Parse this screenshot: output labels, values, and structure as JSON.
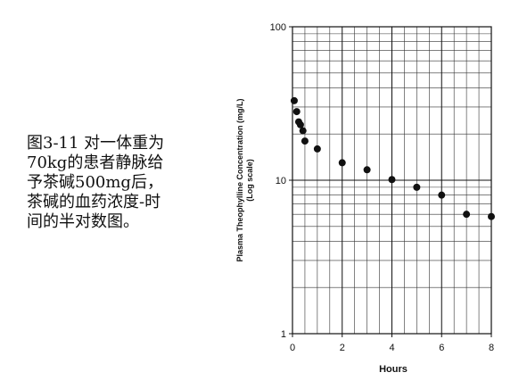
{
  "chart_data": {
    "type": "scatter",
    "caption": [
      "图3-11  对一体重为",
      "70kg的患者静脉给",
      "予茶碱500mg后，",
      "茶碱的血药浓度-时",
      "间的半对数图。"
    ],
    "xlabel": "Hours",
    "ylabel": [
      "Plasma Theophylline Concentration (mg/L)",
      "(Log scale)"
    ],
    "x": [
      0.07,
      0.17,
      0.25,
      0.32,
      0.42,
      0.5,
      1,
      2,
      3,
      4,
      5,
      6,
      7,
      8
    ],
    "values": [
      33,
      28,
      24,
      23,
      21,
      18,
      16,
      13,
      11.7,
      10.1,
      9,
      8,
      6,
      5.8
    ],
    "color": "#111111",
    "xlim": [
      0,
      8
    ],
    "xticks": [
      0,
      2,
      4,
      6,
      8
    ],
    "ylim": [
      1,
      100
    ],
    "yticks": [
      1,
      10,
      100
    ],
    "log_y": true,
    "grid": true
  }
}
